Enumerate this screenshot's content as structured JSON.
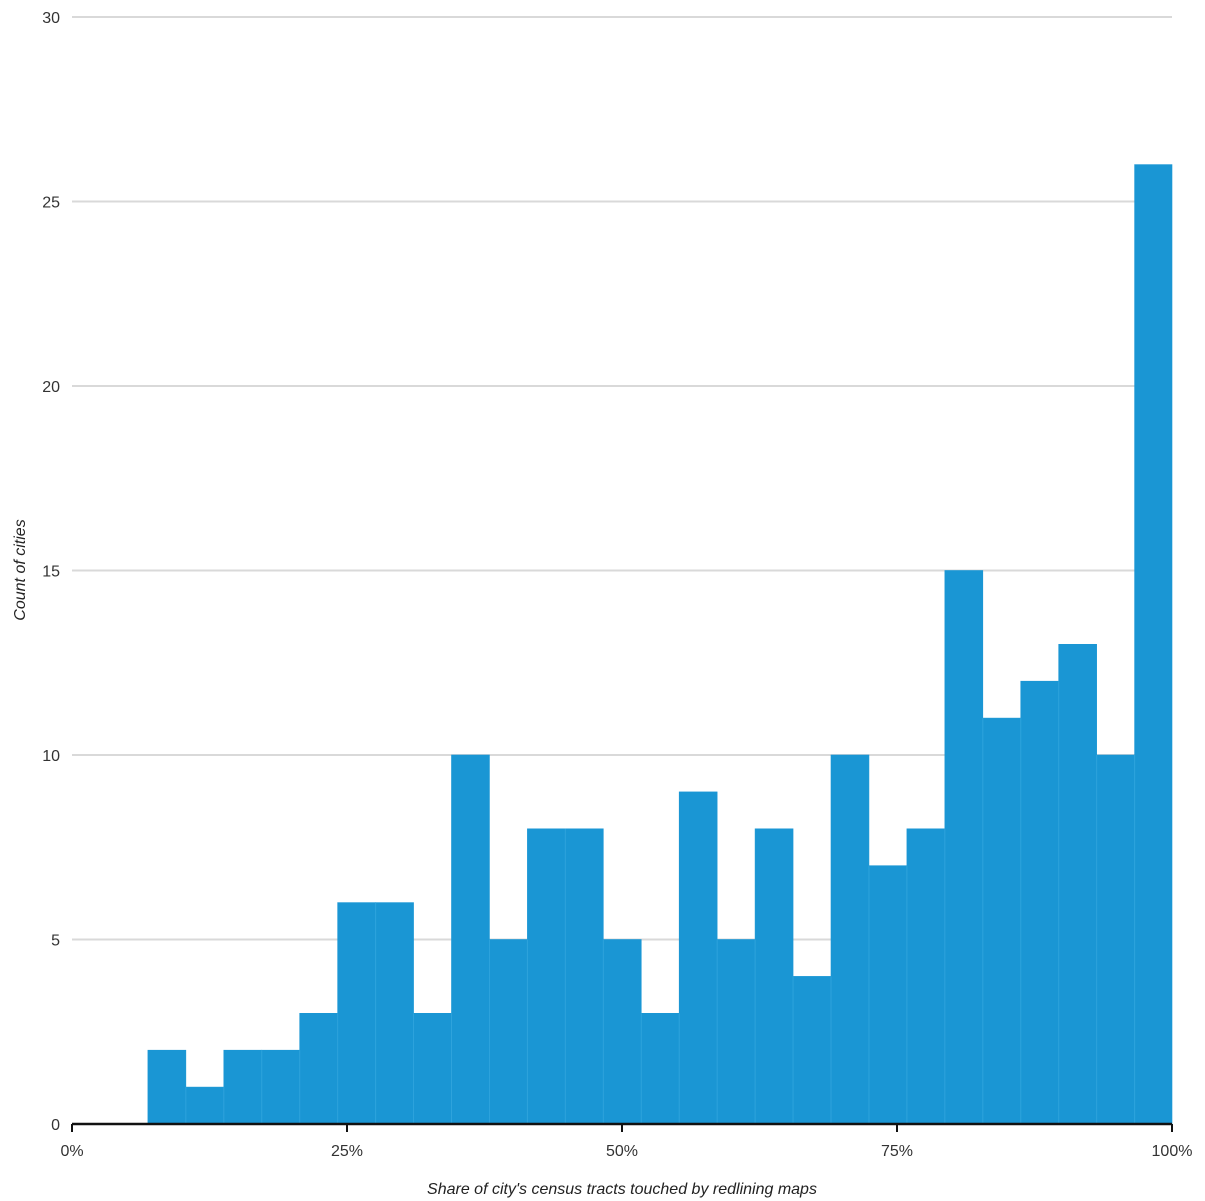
{
  "chart_data": {
    "type": "bar",
    "title": "",
    "xlabel": "Share of city's census tracts touched by redlining maps",
    "ylabel": "Count of cities",
    "xlim": [
      0,
      100
    ],
    "ylim": [
      0,
      30
    ],
    "x_tick_values": [
      0,
      25,
      50,
      75,
      100
    ],
    "x_tick_labels": [
      "0%",
      "25%",
      "50%",
      "75%",
      "100%"
    ],
    "y_tick_values": [
      0,
      5,
      10,
      15,
      20,
      25,
      30
    ],
    "y_tick_labels": [
      "0",
      "5",
      "10",
      "15",
      "20",
      "25",
      "30"
    ],
    "grid": "horizontal",
    "bin_edges": [
      6.9,
      10.35,
      13.8,
      17.25,
      20.7,
      24.15,
      27.6,
      31.05,
      34.5,
      37.95,
      41.4,
      44.85,
      48.3,
      51.75,
      55.2,
      58.65,
      62.1,
      65.55,
      69.0,
      72.45,
      75.9,
      79.35,
      82.8,
      86.25,
      89.7,
      93.15,
      96.6,
      100.0
    ],
    "values": [
      2,
      1,
      2,
      2,
      3,
      6,
      6,
      3,
      10,
      5,
      8,
      8,
      5,
      3,
      9,
      5,
      8,
      4,
      10,
      7,
      8,
      15,
      11,
      12,
      13,
      10,
      26
    ],
    "bar_color": "#1a96d4"
  }
}
